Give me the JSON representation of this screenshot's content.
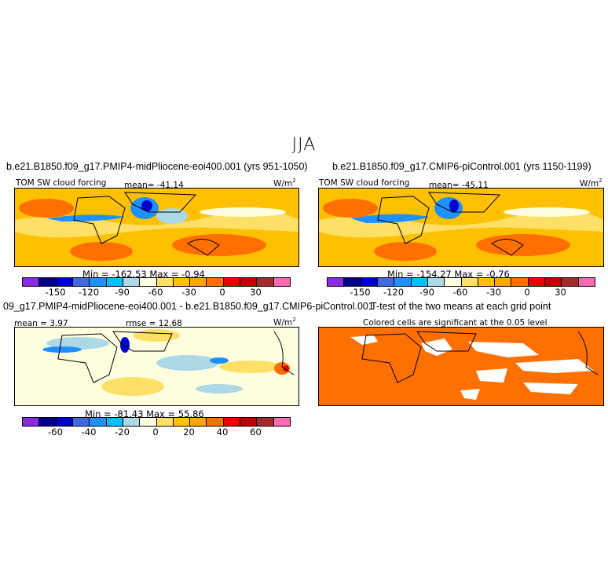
{
  "season": "JJA",
  "panels": {
    "p1": {
      "title": "b.e21.B1850.f09_g17.PMIP4-midPliocene-eoi400.001 (yrs 951-1050)",
      "var_label": "TOM SW cloud forcing",
      "mean_label": "mean= -41.14",
      "units": "W/m",
      "units_exp": "2",
      "minmax": "Min = -162.53 Max =  -0.94"
    },
    "p2": {
      "title": "b.e21.B1850.f09_g17.CMIP6-piControl.001 (yrs 1150-1199)",
      "var_label": "TOM SW cloud forcing",
      "mean_label": "mean= -45.11",
      "units": "W/m",
      "units_exp": "2",
      "minmax": "Min = -154.27 Max =  -0.76"
    },
    "p3": {
      "title": "09_g17.PMIP4-midPliocene-eoi400.001 - b.e21.B1850.f09_g17.CMIP6-piControl.001",
      "mean_label": "mean =   3.97",
      "rmse_label": "rmse =  12.68",
      "units": "W/m",
      "units_exp": "2",
      "minmax": "Min = -81.43 Max =  55.86"
    },
    "p4": {
      "title": "T-test of the two means at each grid point",
      "subtitle": "Colored cells are significant at the 0.05 level"
    }
  },
  "colorbar_abs": {
    "colors": [
      "#8a2be2",
      "#00008b",
      "#0000cd",
      "#4169e1",
      "#1e90ff",
      "#00bfff",
      "#add8e6",
      "#ffffe0",
      "#ffe066",
      "#ffc000",
      "#ffa500",
      "#ff7000",
      "#ee0000",
      "#c00000",
      "#a52a2a",
      "#ff69b4"
    ],
    "ticks": [
      "-150",
      "-120",
      "-90",
      "-60",
      "-30",
      "0",
      "30"
    ]
  },
  "colorbar_diff": {
    "colors": [
      "#8a2be2",
      "#00008b",
      "#0000cd",
      "#4169e1",
      "#1e90ff",
      "#00bfff",
      "#add8e6",
      "#ffffe0",
      "#ffe066",
      "#ffc000",
      "#ffa500",
      "#ff7000",
      "#ee0000",
      "#c00000",
      "#a52a2a",
      "#ff69b4"
    ],
    "ticks": [
      "-60",
      "-40",
      "-20",
      "0",
      "20",
      "40",
      "60"
    ]
  }
}
